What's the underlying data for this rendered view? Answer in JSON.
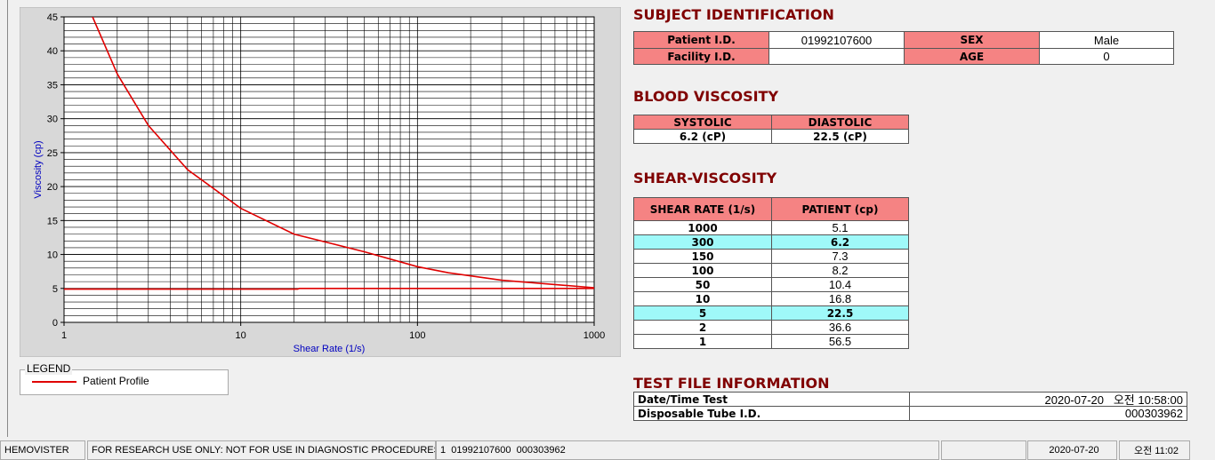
{
  "chart_data": {
    "type": "line",
    "xlabel": "Shear Rate (1/s)",
    "ylabel": "Viscosity (cp)",
    "xscale": "log",
    "xlim": [
      1,
      1000
    ],
    "ylim": [
      0,
      45
    ],
    "xticks": [
      1,
      10,
      100,
      1000
    ],
    "yticks": [
      0,
      5,
      10,
      15,
      20,
      25,
      30,
      35,
      40,
      45
    ],
    "grid": true,
    "minor_grid": true,
    "legend_title": "LEGEND",
    "series": [
      {
        "name": "Patient Profile",
        "color": "#e00000",
        "x": [
          1.45,
          2,
          3,
          5,
          10,
          20,
          50,
          100,
          150,
          300,
          1000
        ],
        "values": [
          45,
          36.6,
          29,
          22.5,
          16.8,
          13,
          10.4,
          8.2,
          7.3,
          6.2,
          5.1
        ]
      },
      {
        "color": "#e00000",
        "x": [
          1,
          21,
          21.5,
          1000
        ],
        "values": [
          4.9,
          4.9,
          5,
          5
        ]
      }
    ]
  },
  "subject_identification": {
    "title": "SUBJECT IDENTIFICATION",
    "rows": [
      [
        "Patient I.D.",
        "01992107600",
        "SEX",
        "Male"
      ],
      [
        "Facility I.D.",
        null,
        "AGE",
        "0"
      ]
    ]
  },
  "blood_viscosity": {
    "title": "BLOOD VISCOSITY",
    "headers": [
      "SYSTOLIC",
      "DIASTOLIC"
    ],
    "values": [
      "6.2 (cP)",
      "22.5 (cP)"
    ]
  },
  "shear_viscosity": {
    "title": "SHEAR-VISCOSITY",
    "headers": [
      "SHEAR RATE (1/s)",
      "PATIENT (cp)"
    ],
    "rows": [
      [
        "1000",
        "5.1"
      ],
      [
        "300",
        "6.2"
      ],
      [
        "150",
        "7.3"
      ],
      [
        "100",
        "8.2"
      ],
      [
        "50",
        "10.4"
      ],
      [
        "10",
        "16.8"
      ],
      [
        "5",
        "22.5"
      ],
      [
        "2",
        "36.6"
      ],
      [
        "1",
        "56.5"
      ]
    ],
    "highlighted_rows": [
      1,
      6
    ],
    "highlight_color": "#9ff9f9"
  },
  "test_file_information": {
    "title": "TEST FILE INFORMATION",
    "rows": [
      [
        "Date/Time Test",
        "2020-07-20   오전 10:58:00"
      ],
      [
        "Disposable Tube I.D.",
        "000303962"
      ]
    ]
  },
  "status_bar": [
    "HEMOVISTER",
    "FOR RESEARCH USE ONLY: NOT FOR USE IN DIAGNOSTIC PROCEDURES",
    "1  01992107600  000303962",
    null,
    "2020-07-20",
    "오전 11:02"
  ]
}
